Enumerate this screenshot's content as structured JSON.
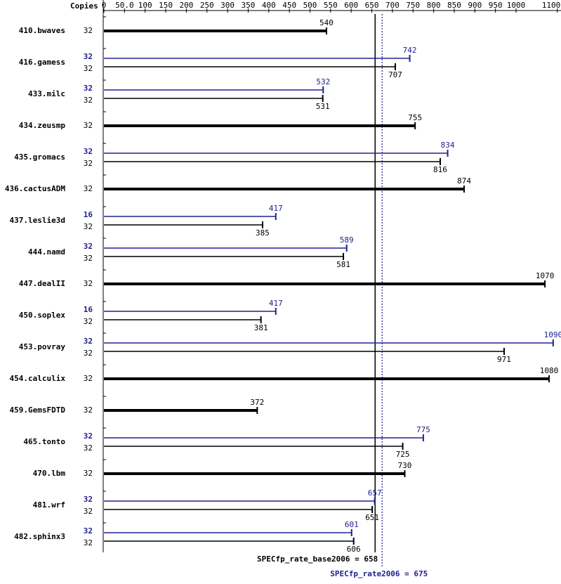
{
  "chart_data": {
    "type": "bar",
    "axis_title": "Copies",
    "base_color": "#000000",
    "peak_color": "#202090",
    "xlim": [
      0,
      1100
    ],
    "xticks": [
      0,
      {
        "value": 50,
        "label": "50.0"
      },
      100,
      150,
      200,
      250,
      300,
      350,
      400,
      450,
      500,
      550,
      600,
      650,
      700,
      750,
      800,
      850,
      900,
      950,
      1000,
      1100
    ],
    "reference_lines": [
      {
        "label": "SPECfp_rate_base2006 = 658",
        "value": 658,
        "kind": "base"
      },
      {
        "label": "SPECfp_rate2006 = 675",
        "value": 675,
        "kind": "peak"
      }
    ],
    "benchmarks": [
      {
        "name": "410.bwaves",
        "base_copies": 32,
        "base": 540
      },
      {
        "name": "416.gamess",
        "peak_copies": 32,
        "peak": 742,
        "base_copies": 32,
        "base": 707
      },
      {
        "name": "433.milc",
        "peak_copies": 32,
        "peak": 532,
        "base_copies": 32,
        "base": 531
      },
      {
        "name": "434.zeusmp",
        "base_copies": 32,
        "base": 755
      },
      {
        "name": "435.gromacs",
        "peak_copies": 32,
        "peak": 834,
        "base_copies": 32,
        "base": 816
      },
      {
        "name": "436.cactusADM",
        "base_copies": 32,
        "base": 874
      },
      {
        "name": "437.leslie3d",
        "peak_copies": 16,
        "peak": 417,
        "base_copies": 32,
        "base": 385
      },
      {
        "name": "444.namd",
        "peak_copies": 32,
        "peak": 589,
        "base_copies": 32,
        "base": 581
      },
      {
        "name": "447.dealII",
        "base_copies": 32,
        "base": 1070
      },
      {
        "name": "450.soplex",
        "peak_copies": 16,
        "peak": 417,
        "base_copies": 32,
        "base": 381
      },
      {
        "name": "453.povray",
        "peak_copies": 32,
        "peak": 1090,
        "base_copies": 32,
        "base": 971
      },
      {
        "name": "454.calculix",
        "base_copies": 32,
        "base": 1080
      },
      {
        "name": "459.GemsFDTD",
        "base_copies": 32,
        "base": 372
      },
      {
        "name": "465.tonto",
        "peak_copies": 32,
        "peak": 775,
        "base_copies": 32,
        "base": 725
      },
      {
        "name": "470.lbm",
        "base_copies": 32,
        "base": 730
      },
      {
        "name": "481.wrf",
        "peak_copies": 32,
        "peak": 657,
        "base_copies": 32,
        "base": 651
      },
      {
        "name": "482.sphinx3",
        "peak_copies": 32,
        "peak": 601,
        "base_copies": 32,
        "base": 606
      }
    ]
  }
}
